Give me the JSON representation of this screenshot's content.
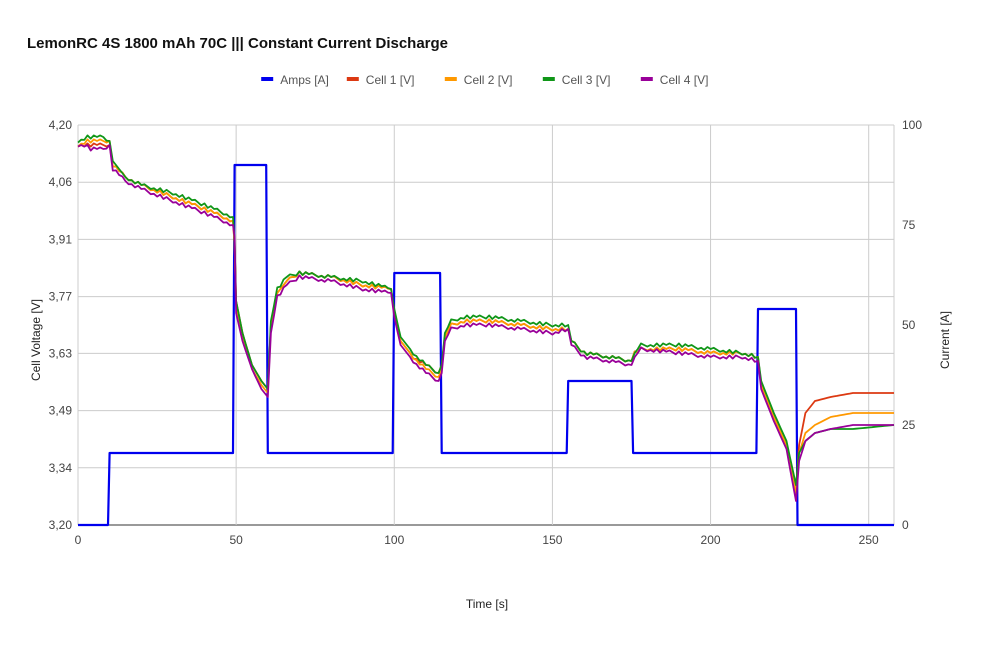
{
  "chart_data": {
    "type": "line",
    "title": "LemonRC 4S 1800 mAh 70C ||| Constant Current Discharge",
    "xlabel": "Time [s]",
    "ylabel_left": "Cell Voltage [V]",
    "ylabel_right": "Current [A]",
    "xlim": [
      0,
      258
    ],
    "ylim_left": [
      3.2,
      4.2
    ],
    "ylim_right": [
      0,
      100
    ],
    "x_ticks": [
      "0",
      "50",
      "100",
      "150",
      "200",
      "250"
    ],
    "x_tick_values": [
      0,
      50,
      100,
      150,
      200,
      250
    ],
    "y_left_ticks": [
      "3,20",
      "3,34",
      "3,49",
      "3,63",
      "3,77",
      "3,91",
      "4,06",
      "4,20"
    ],
    "y_left_tick_values": [
      3.2,
      3.343,
      3.486,
      3.629,
      3.771,
      3.914,
      4.057,
      4.2
    ],
    "y_right_ticks": [
      "0",
      "25",
      "50",
      "75",
      "100"
    ],
    "y_right_tick_values": [
      0,
      25,
      50,
      75,
      100
    ],
    "grid": true,
    "legend_position": "top",
    "series": [
      {
        "name": "Amps [A]",
        "color": "#0000ee",
        "axis": "right",
        "points": [
          [
            0,
            0
          ],
          [
            9.5,
            0
          ],
          [
            10,
            18
          ],
          [
            49,
            18
          ],
          [
            49.5,
            90
          ],
          [
            59.5,
            90
          ],
          [
            60,
            18
          ],
          [
            99.5,
            18
          ],
          [
            100,
            63
          ],
          [
            114.5,
            63
          ],
          [
            115,
            18
          ],
          [
            154.5,
            18
          ],
          [
            155,
            36
          ],
          [
            175,
            36
          ],
          [
            175.5,
            18
          ],
          [
            214.5,
            18
          ],
          [
            215,
            54
          ],
          [
            227,
            54
          ],
          [
            227.5,
            0
          ],
          [
            258,
            0
          ]
        ]
      },
      {
        "name": "Cell 1 [V]",
        "color": "#dc3912",
        "axis": "left",
        "points": [
          [
            0,
            4.15
          ],
          [
            3,
            4.15
          ],
          [
            8,
            4.15
          ],
          [
            10,
            4.15
          ],
          [
            11,
            4.1
          ],
          [
            15,
            4.07
          ],
          [
            20,
            4.05
          ],
          [
            30,
            4.02
          ],
          [
            40,
            3.99
          ],
          [
            49,
            3.96
          ],
          [
            49.5,
            3.9
          ],
          [
            50,
            3.76
          ],
          [
            52,
            3.68
          ],
          [
            55,
            3.6
          ],
          [
            58,
            3.56
          ],
          [
            60,
            3.54
          ],
          [
            61,
            3.7
          ],
          [
            63,
            3.78
          ],
          [
            66,
            3.81
          ],
          [
            70,
            3.83
          ],
          [
            80,
            3.82
          ],
          [
            90,
            3.8
          ],
          [
            99,
            3.79
          ],
          [
            100,
            3.73
          ],
          [
            102,
            3.66
          ],
          [
            106,
            3.62
          ],
          [
            110,
            3.6
          ],
          [
            114,
            3.58
          ],
          [
            115,
            3.6
          ],
          [
            116,
            3.67
          ],
          [
            118,
            3.7
          ],
          [
            122,
            3.71
          ],
          [
            130,
            3.71
          ],
          [
            140,
            3.7
          ],
          [
            150,
            3.69
          ],
          [
            155,
            3.69
          ],
          [
            156,
            3.66
          ],
          [
            160,
            3.63
          ],
          [
            168,
            3.62
          ],
          [
            175,
            3.61
          ],
          [
            176,
            3.63
          ],
          [
            178,
            3.64
          ],
          [
            190,
            3.64
          ],
          [
            200,
            3.63
          ],
          [
            210,
            3.63
          ],
          [
            215,
            3.62
          ],
          [
            216,
            3.55
          ],
          [
            220,
            3.47
          ],
          [
            224,
            3.4
          ],
          [
            227,
            3.29
          ],
          [
            228,
            3.4
          ],
          [
            230,
            3.48
          ],
          [
            233,
            3.51
          ],
          [
            238,
            3.52
          ],
          [
            245,
            3.53
          ],
          [
            258,
            3.53
          ]
        ]
      },
      {
        "name": "Cell 2 [V]",
        "color": "#ff9900",
        "axis": "left",
        "points": [
          [
            0,
            4.15
          ],
          [
            3,
            4.16
          ],
          [
            8,
            4.16
          ],
          [
            10,
            4.16
          ],
          [
            11,
            4.1
          ],
          [
            15,
            4.07
          ],
          [
            20,
            4.05
          ],
          [
            30,
            4.02
          ],
          [
            40,
            3.99
          ],
          [
            49,
            3.96
          ],
          [
            49.5,
            3.9
          ],
          [
            50,
            3.75
          ],
          [
            52,
            3.67
          ],
          [
            55,
            3.59
          ],
          [
            58,
            3.55
          ],
          [
            60,
            3.53
          ],
          [
            61,
            3.7
          ],
          [
            63,
            3.78
          ],
          [
            66,
            3.81
          ],
          [
            70,
            3.83
          ],
          [
            80,
            3.82
          ],
          [
            90,
            3.8
          ],
          [
            99,
            3.79
          ],
          [
            100,
            3.73
          ],
          [
            102,
            3.66
          ],
          [
            106,
            3.62
          ],
          [
            110,
            3.59
          ],
          [
            114,
            3.57
          ],
          [
            115,
            3.59
          ],
          [
            116,
            3.67
          ],
          [
            118,
            3.7
          ],
          [
            122,
            3.71
          ],
          [
            130,
            3.71
          ],
          [
            140,
            3.7
          ],
          [
            150,
            3.69
          ],
          [
            155,
            3.69
          ],
          [
            156,
            3.66
          ],
          [
            160,
            3.63
          ],
          [
            168,
            3.62
          ],
          [
            175,
            3.61
          ],
          [
            176,
            3.63
          ],
          [
            178,
            3.64
          ],
          [
            190,
            3.64
          ],
          [
            200,
            3.63
          ],
          [
            210,
            3.63
          ],
          [
            215,
            3.62
          ],
          [
            216,
            3.55
          ],
          [
            220,
            3.47
          ],
          [
            224,
            3.4
          ],
          [
            227,
            3.28
          ],
          [
            228,
            3.38
          ],
          [
            230,
            3.43
          ],
          [
            233,
            3.45
          ],
          [
            238,
            3.47
          ],
          [
            245,
            3.48
          ],
          [
            258,
            3.48
          ]
        ]
      },
      {
        "name": "Cell 3 [V]",
        "color": "#109618",
        "axis": "left",
        "points": [
          [
            0,
            4.16
          ],
          [
            3,
            4.17
          ],
          [
            8,
            4.17
          ],
          [
            10,
            4.16
          ],
          [
            11,
            4.11
          ],
          [
            15,
            4.07
          ],
          [
            20,
            4.05
          ],
          [
            30,
            4.03
          ],
          [
            40,
            4.0
          ],
          [
            49,
            3.97
          ],
          [
            49.5,
            3.91
          ],
          [
            50,
            3.76
          ],
          [
            52,
            3.68
          ],
          [
            55,
            3.6
          ],
          [
            58,
            3.56
          ],
          [
            60,
            3.54
          ],
          [
            61,
            3.71
          ],
          [
            63,
            3.79
          ],
          [
            66,
            3.82
          ],
          [
            70,
            3.83
          ],
          [
            80,
            3.82
          ],
          [
            90,
            3.81
          ],
          [
            99,
            3.79
          ],
          [
            100,
            3.74
          ],
          [
            102,
            3.67
          ],
          [
            106,
            3.63
          ],
          [
            110,
            3.6
          ],
          [
            114,
            3.58
          ],
          [
            115,
            3.6
          ],
          [
            116,
            3.68
          ],
          [
            118,
            3.71
          ],
          [
            122,
            3.72
          ],
          [
            130,
            3.72
          ],
          [
            140,
            3.71
          ],
          [
            150,
            3.7
          ],
          [
            155,
            3.7
          ],
          [
            156,
            3.66
          ],
          [
            160,
            3.63
          ],
          [
            168,
            3.62
          ],
          [
            175,
            3.61
          ],
          [
            176,
            3.63
          ],
          [
            178,
            3.65
          ],
          [
            190,
            3.65
          ],
          [
            200,
            3.64
          ],
          [
            210,
            3.63
          ],
          [
            215,
            3.62
          ],
          [
            216,
            3.56
          ],
          [
            220,
            3.48
          ],
          [
            224,
            3.41
          ],
          [
            227,
            3.3
          ],
          [
            228,
            3.38
          ],
          [
            230,
            3.41
          ],
          [
            233,
            3.43
          ],
          [
            238,
            3.44
          ],
          [
            245,
            3.44
          ],
          [
            258,
            3.45
          ]
        ]
      },
      {
        "name": "Cell 4 [V]",
        "color": "#990099",
        "axis": "left",
        "points": [
          [
            0,
            4.15
          ],
          [
            3,
            4.15
          ],
          [
            4,
            4.14
          ],
          [
            8,
            4.14
          ],
          [
            10,
            4.15
          ],
          [
            11,
            4.09
          ],
          [
            15,
            4.06
          ],
          [
            20,
            4.04
          ],
          [
            30,
            4.01
          ],
          [
            40,
            3.98
          ],
          [
            49,
            3.95
          ],
          [
            49.5,
            3.92
          ],
          [
            50,
            3.73
          ],
          [
            52,
            3.66
          ],
          [
            55,
            3.59
          ],
          [
            58,
            3.54
          ],
          [
            60,
            3.52
          ],
          [
            61,
            3.68
          ],
          [
            63,
            3.77
          ],
          [
            66,
            3.8
          ],
          [
            70,
            3.82
          ],
          [
            80,
            3.81
          ],
          [
            90,
            3.79
          ],
          [
            99,
            3.78
          ],
          [
            100,
            3.72
          ],
          [
            102,
            3.65
          ],
          [
            106,
            3.61
          ],
          [
            110,
            3.58
          ],
          [
            114,
            3.56
          ],
          [
            115,
            3.58
          ],
          [
            116,
            3.66
          ],
          [
            118,
            3.69
          ],
          [
            122,
            3.7
          ],
          [
            130,
            3.7
          ],
          [
            140,
            3.69
          ],
          [
            150,
            3.68
          ],
          [
            155,
            3.69
          ],
          [
            156,
            3.65
          ],
          [
            160,
            3.62
          ],
          [
            168,
            3.61
          ],
          [
            175,
            3.6
          ],
          [
            176,
            3.62
          ],
          [
            178,
            3.64
          ],
          [
            190,
            3.63
          ],
          [
            200,
            3.62
          ],
          [
            210,
            3.62
          ],
          [
            215,
            3.61
          ],
          [
            216,
            3.54
          ],
          [
            220,
            3.46
          ],
          [
            224,
            3.39
          ],
          [
            227,
            3.26
          ],
          [
            228,
            3.36
          ],
          [
            230,
            3.41
          ],
          [
            233,
            3.43
          ],
          [
            238,
            3.44
          ],
          [
            245,
            3.45
          ],
          [
            258,
            3.45
          ]
        ]
      }
    ]
  }
}
